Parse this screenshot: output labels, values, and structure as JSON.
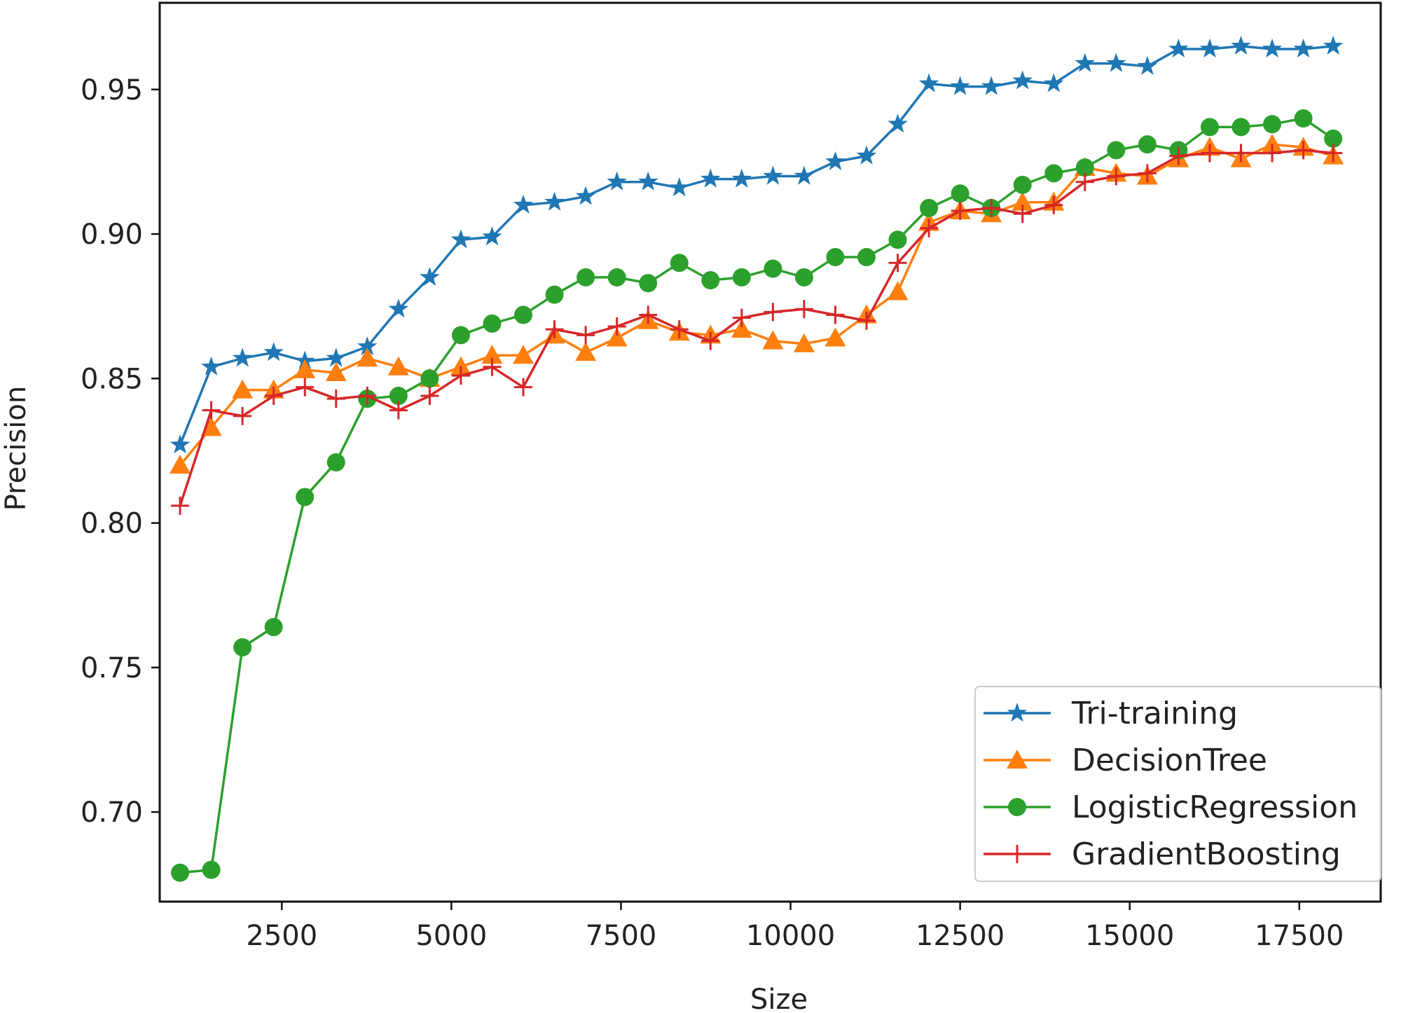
{
  "chart_data": {
    "type": "line",
    "title": "",
    "xlabel": "Size",
    "ylabel": "Precision",
    "xlim": [
      700,
      18700
    ],
    "ylim": [
      0.669,
      0.98
    ],
    "xticks": [
      2500,
      5000,
      7500,
      10000,
      12500,
      15000,
      17500
    ],
    "xtick_labels": [
      "2500",
      "5000",
      "7500",
      "10000",
      "12500",
      "15000",
      "17500"
    ],
    "yticks": [
      0.7,
      0.75,
      0.8,
      0.85,
      0.9,
      0.95
    ],
    "ytick_labels": [
      "0.70",
      "0.75",
      "0.80",
      "0.85",
      "0.90",
      "0.95"
    ],
    "grid": false,
    "legend_position": "lower-right",
    "x": [
      1000,
      1460,
      1920,
      2380,
      2840,
      3300,
      3760,
      4220,
      4680,
      5140,
      5600,
      6060,
      6520,
      6980,
      7440,
      7900,
      8360,
      8820,
      9280,
      9740,
      10200,
      10660,
      11120,
      11580,
      12040,
      12500,
      12960,
      13420,
      13880,
      14340,
      14800,
      15260,
      15720,
      16180,
      16640,
      17100,
      17560,
      18000
    ],
    "series": [
      {
        "name": "Tri-training",
        "color": "#1f77b4",
        "marker": "star",
        "values": [
          0.827,
          0.854,
          0.857,
          0.859,
          0.856,
          0.857,
          0.861,
          0.874,
          0.885,
          0.898,
          0.899,
          0.91,
          0.911,
          0.913,
          0.918,
          0.918,
          0.916,
          0.919,
          0.919,
          0.92,
          0.92,
          0.925,
          0.927,
          0.938,
          0.952,
          0.951,
          0.951,
          0.953,
          0.952,
          0.959,
          0.959,
          0.958,
          0.964,
          0.964,
          0.965,
          0.964,
          0.964,
          0.965
        ]
      },
      {
        "name": "DecisionTree",
        "color": "#ff7f0e",
        "marker": "triangle",
        "values": [
          0.82,
          0.833,
          0.846,
          0.846,
          0.853,
          0.852,
          0.857,
          0.854,
          0.85,
          0.854,
          0.858,
          0.858,
          0.865,
          0.859,
          0.864,
          0.87,
          0.866,
          0.865,
          0.867,
          0.863,
          0.862,
          0.864,
          0.872,
          0.88,
          0.904,
          0.908,
          0.907,
          0.911,
          0.911,
          0.923,
          0.921,
          0.92,
          0.926,
          0.93,
          0.926,
          0.931,
          0.93,
          0.927
        ]
      },
      {
        "name": "LogisticRegression",
        "color": "#2ca02c",
        "marker": "circle",
        "values": [
          0.679,
          0.68,
          0.757,
          0.764,
          0.809,
          0.821,
          0.843,
          0.844,
          0.85,
          0.865,
          0.869,
          0.872,
          0.879,
          0.885,
          0.885,
          0.883,
          0.89,
          0.884,
          0.885,
          0.888,
          0.885,
          0.892,
          0.892,
          0.898,
          0.909,
          0.914,
          0.909,
          0.917,
          0.921,
          0.923,
          0.929,
          0.931,
          0.929,
          0.937,
          0.937,
          0.938,
          0.94,
          0.933
        ]
      },
      {
        "name": "GradientBoosting",
        "color": "#d62728",
        "marker": "plus",
        "values": [
          0.806,
          0.839,
          0.837,
          0.844,
          0.847,
          0.843,
          0.844,
          0.839,
          0.844,
          0.851,
          0.854,
          0.847,
          0.867,
          0.865,
          0.868,
          0.872,
          0.867,
          0.863,
          0.871,
          0.873,
          0.874,
          0.872,
          0.87,
          0.89,
          0.902,
          0.908,
          0.909,
          0.907,
          0.91,
          0.918,
          0.92,
          0.921,
          0.927,
          0.928,
          0.928,
          0.928,
          0.929,
          0.928
        ]
      }
    ]
  }
}
